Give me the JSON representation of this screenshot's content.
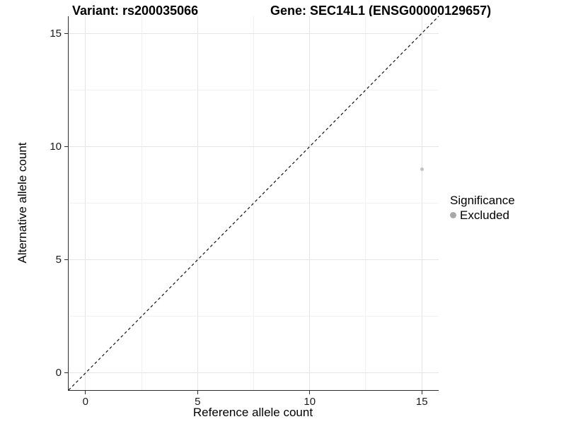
{
  "header": {
    "variant_title": "Variant: rs200035066",
    "gene_title": "Gene: SEC14L1 (ENSG00000129657)"
  },
  "chart_data": {
    "type": "scatter",
    "title": "Variant: rs200035066",
    "subtitle": "Gene: SEC14L1 (ENSG00000129657)",
    "xlabel": "Reference allele count",
    "ylabel": "Alternative allele count",
    "xlim": [
      -0.75,
      15.75
    ],
    "ylim": [
      -0.75,
      15.75
    ],
    "xticks": [
      0,
      5,
      10,
      15
    ],
    "yticks": [
      0,
      5,
      10,
      15
    ],
    "grid": {
      "major": true,
      "minor": true
    },
    "reference_line": {
      "kind": "identity",
      "equation": "y = x",
      "style": "dashed",
      "color": "#111111"
    },
    "legend": {
      "title": "Significance",
      "position": "right"
    },
    "series": [
      {
        "name": "Excluded",
        "color": "#bebebe",
        "points": [
          {
            "x": 15,
            "y": 9
          }
        ]
      }
    ]
  },
  "colors": {
    "background": "#ffffff",
    "axis_line": "#2d2d2d",
    "tick_label": "#1a1a1a",
    "grid_major": "#e4e4e4",
    "grid_minor": "#f1f1f1",
    "point": "#c3c3c3",
    "legend_key": "#a8a8a8"
  }
}
